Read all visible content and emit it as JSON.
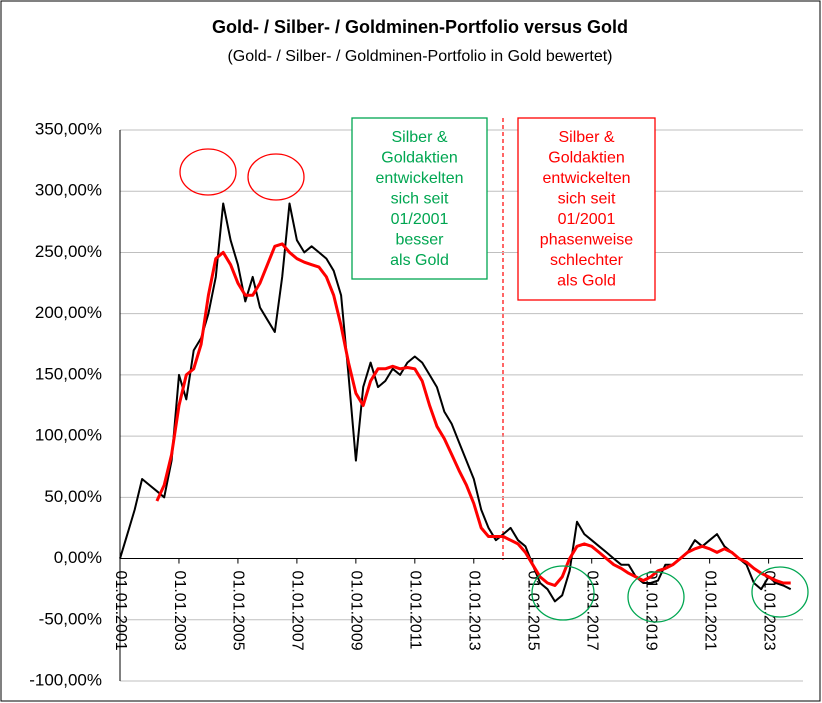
{
  "chart_data": {
    "type": "line",
    "title": "Gold- / Silber- / Goldminen-Portfolio versus Gold",
    "subtitle": "(Gold- / Silber- / Goldminen-Portfolio in Gold bewertet)",
    "x": [
      "01.01.2001",
      "01.04.2001",
      "01.07.2001",
      "01.10.2001",
      "01.01.2002",
      "01.04.2002",
      "01.07.2002",
      "01.10.2002",
      "01.01.2003",
      "01.04.2003",
      "01.07.2003",
      "01.10.2003",
      "01.01.2004",
      "01.04.2004",
      "01.07.2004",
      "01.10.2004",
      "01.01.2005",
      "01.04.2005",
      "01.07.2005",
      "01.10.2005",
      "01.01.2006",
      "01.04.2006",
      "01.07.2006",
      "01.10.2006",
      "01.01.2007",
      "01.04.2007",
      "01.07.2007",
      "01.10.2007",
      "01.01.2008",
      "01.04.2008",
      "01.07.2008",
      "01.10.2008",
      "01.01.2009",
      "01.04.2009",
      "01.07.2009",
      "01.10.2009",
      "01.01.2010",
      "01.04.2010",
      "01.07.2010",
      "01.10.2010",
      "01.01.2011",
      "01.04.2011",
      "01.07.2011",
      "01.10.2011",
      "01.01.2012",
      "01.04.2012",
      "01.07.2012",
      "01.10.2012",
      "01.01.2013",
      "01.04.2013",
      "01.07.2013",
      "01.10.2013",
      "01.01.2014",
      "01.04.2014",
      "01.07.2014",
      "01.10.2014",
      "01.01.2015",
      "01.04.2015",
      "01.07.2015",
      "01.10.2015",
      "01.01.2016",
      "01.04.2016",
      "01.07.2016",
      "01.10.2016",
      "01.01.2017",
      "01.04.2017",
      "01.07.2017",
      "01.10.2017",
      "01.01.2018",
      "01.04.2018",
      "01.07.2018",
      "01.10.2018",
      "01.01.2019",
      "01.04.2019",
      "01.07.2019",
      "01.10.2019",
      "01.01.2020",
      "01.04.2020",
      "01.07.2020",
      "01.10.2020",
      "01.01.2021",
      "01.04.2021",
      "01.07.2021",
      "01.10.2021",
      "01.01.2022",
      "01.04.2022",
      "01.07.2022",
      "01.10.2022",
      "01.01.2023",
      "01.04.2023",
      "01.07.2023",
      "01.10.2023"
    ],
    "series": [
      {
        "color": "#000000",
        "values": [
          0,
          20,
          40,
          65,
          60,
          55,
          50,
          80,
          150,
          130,
          170,
          180,
          200,
          230,
          290,
          260,
          240,
          210,
          230,
          205,
          195,
          185,
          230,
          290,
          260,
          250,
          255,
          250,
          245,
          235,
          215,
          150,
          80,
          140,
          160,
          140,
          145,
          155,
          150,
          160,
          165,
          160,
          150,
          140,
          120,
          110,
          95,
          80,
          65,
          40,
          25,
          15,
          20,
          25,
          15,
          10,
          -5,
          -20,
          -25,
          -35,
          -30,
          -10,
          30,
          20,
          15,
          10,
          5,
          0,
          -5,
          -5,
          -15,
          -20,
          -20,
          -18,
          -5,
          -5,
          0,
          5,
          15,
          10,
          15,
          20,
          10,
          5,
          0,
          -5,
          -20,
          -25,
          -15,
          -20,
          -22,
          -25
        ]
      },
      {
        "color": "#ff0000",
        "values": [
          null,
          null,
          null,
          null,
          null,
          47,
          60,
          85,
          125,
          150,
          155,
          175,
          215,
          245,
          250,
          240,
          225,
          215,
          215,
          225,
          240,
          255,
          257,
          250,
          245,
          242,
          240,
          238,
          230,
          215,
          190,
          160,
          135,
          125,
          145,
          155,
          155,
          157,
          155,
          156,
          155,
          145,
          125,
          108,
          98,
          85,
          72,
          60,
          45,
          25,
          18,
          18,
          18,
          15,
          12,
          5,
          -5,
          -15,
          -20,
          -22,
          -15,
          0,
          10,
          12,
          10,
          5,
          0,
          -5,
          -8,
          -12,
          -15,
          -18,
          -15,
          -10,
          -8,
          -5,
          0,
          5,
          8,
          10,
          8,
          5,
          8,
          5,
          0,
          -3,
          -8,
          -12,
          -15,
          -18,
          -20,
          -20
        ]
      }
    ],
    "xlim": [
      "01.01.2001",
      "01.03.2024"
    ],
    "xticks": [
      "01.01.2001",
      "01.01.2003",
      "01.01.2005",
      "01.01.2007",
      "01.01.2009",
      "01.01.2011",
      "01.01.2013",
      "01.01.2015",
      "01.01.2017",
      "01.01.2019",
      "01.01.2021",
      "01.01.2023"
    ],
    "ylim": [
      -100,
      350
    ],
    "yticks": [
      {
        "value": -100,
        "label": "-100,00%"
      },
      {
        "value": -50,
        "label": "-50,00%"
      },
      {
        "value": 0,
        "label": "0,00%"
      },
      {
        "value": 50,
        "label": "50,00%"
      },
      {
        "value": 100,
        "label": "100,00%"
      },
      {
        "value": 150,
        "label": "150,00%"
      },
      {
        "value": 200,
        "label": "200,00%"
      },
      {
        "value": 250,
        "label": "250,00%"
      },
      {
        "value": 300,
        "label": "300,00%"
      },
      {
        "value": 350,
        "label": "350,00%"
      }
    ],
    "grid": true,
    "annotations": [
      {
        "color": "#00a651",
        "lines": [
          "Silber &",
          "Goldaktien",
          "entwickelten",
          "sich seit",
          "01/2001",
          "besser",
          "als Gold"
        ]
      },
      {
        "color": "#ff0000",
        "lines": [
          "Silber &",
          "Goldaktien",
          "entwickelten",
          "sich seit",
          "01/2001",
          "phasenweise",
          "schlechter",
          "als Gold"
        ]
      }
    ]
  }
}
